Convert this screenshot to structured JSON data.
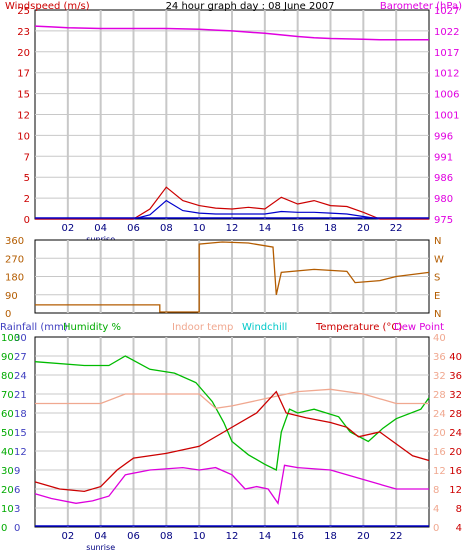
{
  "chart_data": [
    {
      "type": "line",
      "title": "24 hour graph day : 08 June 2007",
      "left_axis": {
        "label": "Windspeed (m/s)",
        "ticks": [
          "0",
          "2",
          "5",
          "7",
          "10",
          "12",
          "15",
          "17",
          "20",
          "23",
          "25"
        ],
        "ylim": [
          0,
          25
        ]
      },
      "right_axis": {
        "label": "Barometer (hPa)",
        "ticks": [
          "975",
          "980",
          "986",
          "991",
          "996",
          "1001",
          "1006",
          "1012",
          "1017",
          "1022",
          "1027"
        ],
        "ylim": [
          975,
          1027
        ]
      },
      "x_ticks": [
        "02",
        "04",
        "06",
        "08",
        "10",
        "12",
        "14",
        "16",
        "18",
        "20",
        "22"
      ],
      "x_note": "sunrise",
      "hours": [
        0,
        1,
        2,
        3,
        4,
        5,
        6,
        7,
        8,
        9,
        10,
        11,
        12,
        13,
        14,
        15,
        16,
        17,
        18,
        19,
        20,
        21,
        22,
        23,
        24
      ],
      "series": [
        {
          "key": "barometer",
          "axis": "right",
          "color": "#e000e0",
          "values": [
            1023,
            1022.8,
            1022.6,
            1022.5,
            1022.4,
            1022.4,
            1022.4,
            1022.4,
            1022.4,
            1022.3,
            1022.2,
            1022,
            1021.8,
            1021.5,
            1021.2,
            1020.8,
            1020.4,
            1020.1,
            1019.9,
            1019.8,
            1019.7,
            1019.6,
            1019.6,
            1019.6,
            1019.6
          ]
        },
        {
          "key": "wind_avg",
          "axis": "left",
          "color": "#0000cc",
          "values": [
            0,
            0,
            0,
            0,
            0,
            0,
            0,
            0.5,
            2.2,
            1.0,
            0.7,
            0.6,
            0.6,
            0.6,
            0.6,
            0.9,
            0.8,
            0.8,
            0.7,
            0.6,
            0.3,
            0,
            0,
            0,
            0
          ]
        },
        {
          "key": "wind_gust",
          "axis": "left",
          "color": "#cc0000",
          "values": [
            0,
            0,
            0,
            0,
            0,
            0,
            0,
            1.2,
            3.8,
            2.2,
            1.6,
            1.3,
            1.2,
            1.4,
            1.2,
            2.6,
            1.8,
            2.2,
            1.6,
            1.5,
            0.8,
            0,
            0,
            0,
            0
          ]
        }
      ]
    },
    {
      "type": "line",
      "left_axis": {
        "ticks": [
          "360",
          "270",
          "180",
          "90",
          "0"
        ],
        "ylim": [
          0,
          360
        ]
      },
      "right_axis": {
        "ticks": [
          "N",
          "W",
          "S",
          "E",
          "N"
        ]
      },
      "series": [
        {
          "key": "wind_direction",
          "color": "#b35c00",
          "points": [
            [
              0,
              40
            ],
            [
              7.6,
              40
            ],
            [
              7.6,
              5
            ],
            [
              10,
              5
            ],
            [
              10,
              340
            ],
            [
              11.4,
              350
            ],
            [
              13,
              345
            ],
            [
              14.5,
              325
            ],
            [
              14.7,
              90
            ],
            [
              15,
              200
            ],
            [
              17,
              215
            ],
            [
              19,
              205
            ],
            [
              19.5,
              150
            ],
            [
              21,
              160
            ],
            [
              22,
              180
            ],
            [
              24,
              200
            ]
          ]
        }
      ]
    },
    {
      "type": "line",
      "title_labels": [
        "Rainfall (mm)",
        "Humidity %",
        "Indoor temp",
        "Windchill",
        "Temperature (°C)",
        "Dew Point"
      ],
      "rain_axis": {
        "ticks": [
          "0",
          "3",
          "6",
          "9",
          "12",
          "15",
          "18",
          "21",
          "24",
          "27",
          "30"
        ],
        "ylim": [
          0,
          30
        ]
      },
      "humidity_axis": {
        "ticks": [
          "0",
          "10",
          "20",
          "30",
          "40",
          "50",
          "60",
          "70",
          "80",
          "90",
          "100"
        ],
        "ylim": [
          0,
          100
        ]
      },
      "temp_axis_a": {
        "ticks": [
          "0",
          "4",
          "8",
          "12",
          "16",
          "20",
          "24",
          "28",
          "32",
          "36",
          "40"
        ],
        "ylim": [
          0,
          40
        ]
      },
      "temp_axis_b": {
        "ticks": [
          "4",
          "8",
          "12",
          "16",
          "20",
          "24",
          "28",
          "32",
          "36",
          "40"
        ],
        "ylim": [
          0,
          40
        ]
      },
      "x_ticks": [
        "02",
        "04",
        "06",
        "08",
        "10",
        "12",
        "14",
        "16",
        "18",
        "20",
        "22"
      ],
      "x_note": "sunrise",
      "series": [
        {
          "key": "humidity",
          "axis": "humidity",
          "color": "#00bb00",
          "points": [
            [
              0,
              87
            ],
            [
              3,
              85
            ],
            [
              4.5,
              85
            ],
            [
              5.5,
              90
            ],
            [
              7,
              83
            ],
            [
              8.5,
              81
            ],
            [
              9.8,
              76
            ],
            [
              10.8,
              66
            ],
            [
              11.5,
              55
            ],
            [
              12,
              45
            ],
            [
              13,
              38
            ],
            [
              14,
              33
            ],
            [
              14.7,
              30
            ],
            [
              15,
              50
            ],
            [
              15.5,
              62
            ],
            [
              16,
              60
            ],
            [
              17,
              62
            ],
            [
              18.5,
              58
            ],
            [
              19.2,
              50
            ],
            [
              20.3,
              45
            ],
            [
              21.2,
              52
            ],
            [
              22,
              57
            ],
            [
              23.5,
              62
            ],
            [
              24,
              68
            ]
          ]
        },
        {
          "key": "indoor_temp",
          "axis": "temp",
          "color": "#f0a890",
          "points": [
            [
              0,
              26
            ],
            [
              4,
              26
            ],
            [
              5.5,
              28
            ],
            [
              8,
              28
            ],
            [
              10,
              28
            ],
            [
              11,
              25
            ],
            [
              12,
              25.5
            ],
            [
              14,
              27
            ],
            [
              16,
              28.5
            ],
            [
              18,
              29
            ],
            [
              20,
              28
            ],
            [
              22,
              26
            ],
            [
              24,
              26
            ]
          ]
        },
        {
          "key": "temperature",
          "axis": "temp",
          "color": "#cc0000",
          "points": [
            [
              0,
              9.5
            ],
            [
              1.5,
              8
            ],
            [
              3,
              7.5
            ],
            [
              4,
              8.5
            ],
            [
              5,
              12
            ],
            [
              6,
              14.5
            ],
            [
              8,
              15.5
            ],
            [
              10,
              17
            ],
            [
              11.5,
              20
            ],
            [
              13.5,
              24
            ],
            [
              14.7,
              28.5
            ],
            [
              15.3,
              24
            ],
            [
              16.5,
              23
            ],
            [
              18,
              22
            ],
            [
              19,
              21
            ],
            [
              19.7,
              19
            ],
            [
              21,
              20
            ],
            [
              23,
              15
            ],
            [
              24,
              14
            ]
          ]
        },
        {
          "key": "dew_point",
          "axis": "temp",
          "color": "#dd00dd",
          "points": [
            [
              0,
              7
            ],
            [
              1,
              6
            ],
            [
              2.5,
              5
            ],
            [
              3.5,
              5.5
            ],
            [
              4.5,
              6.5
            ],
            [
              5.5,
              11
            ],
            [
              7,
              12
            ],
            [
              9,
              12.5
            ],
            [
              10,
              12
            ],
            [
              11,
              12.5
            ],
            [
              12,
              11
            ],
            [
              12.8,
              8
            ],
            [
              13.5,
              8.5
            ],
            [
              14.2,
              8
            ],
            [
              14.8,
              5
            ],
            [
              15.2,
              13
            ],
            [
              16,
              12.5
            ],
            [
              18,
              12
            ],
            [
              19,
              11
            ],
            [
              20,
              10
            ],
            [
              21,
              9
            ],
            [
              22,
              8
            ],
            [
              24,
              8
            ]
          ]
        }
      ]
    }
  ]
}
